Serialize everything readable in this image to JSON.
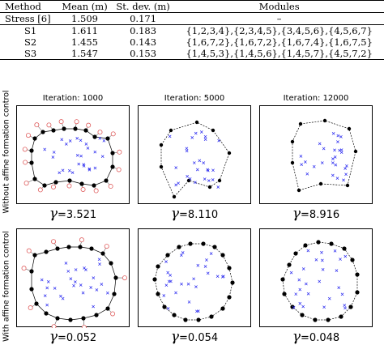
{
  "table": {
    "headers": [
      "Method",
      "Mean (m)",
      "St. dev. (m)",
      "Modules"
    ],
    "rows": [
      {
        "method": "Stress [6]",
        "mean": "1.509",
        "std": "0.171",
        "modules": "–"
      },
      {
        "method": "S1",
        "mean": "1.611",
        "std": "0.183",
        "modules": "{1,2,3,4},{2,3,4,5},{3,4,5,6},{4,5,6,7}"
      },
      {
        "method": "S2",
        "mean": "1.455",
        "std": "0.143",
        "modules": "{1,6,7,2},{1,6,7,2},{1,6,7,4},{1,6,7,5}"
      },
      {
        "method": "S3",
        "mean": "1.547",
        "std": "0.153",
        "modules": "{1,4,5,3},{1,4,5,6},{1,4,5,7},{4,5,7,2}"
      }
    ]
  },
  "figure": {
    "iterations": [
      "Iteration: 1000",
      "Iteration: 5000",
      "Iteration: 12000"
    ],
    "row_labels": [
      "Without affine formation control",
      "With affine formation control"
    ],
    "gamma_symbol": "γ",
    "gamma_values": [
      [
        "=3.521",
        "=8.110",
        "=8.916"
      ],
      [
        "=0.052",
        "=0.054",
        "=0.048"
      ]
    ],
    "colors": {
      "agent": "#000000",
      "target": "#2a2af0",
      "initial": "#e06060",
      "boundary": "#000000"
    }
  }
}
